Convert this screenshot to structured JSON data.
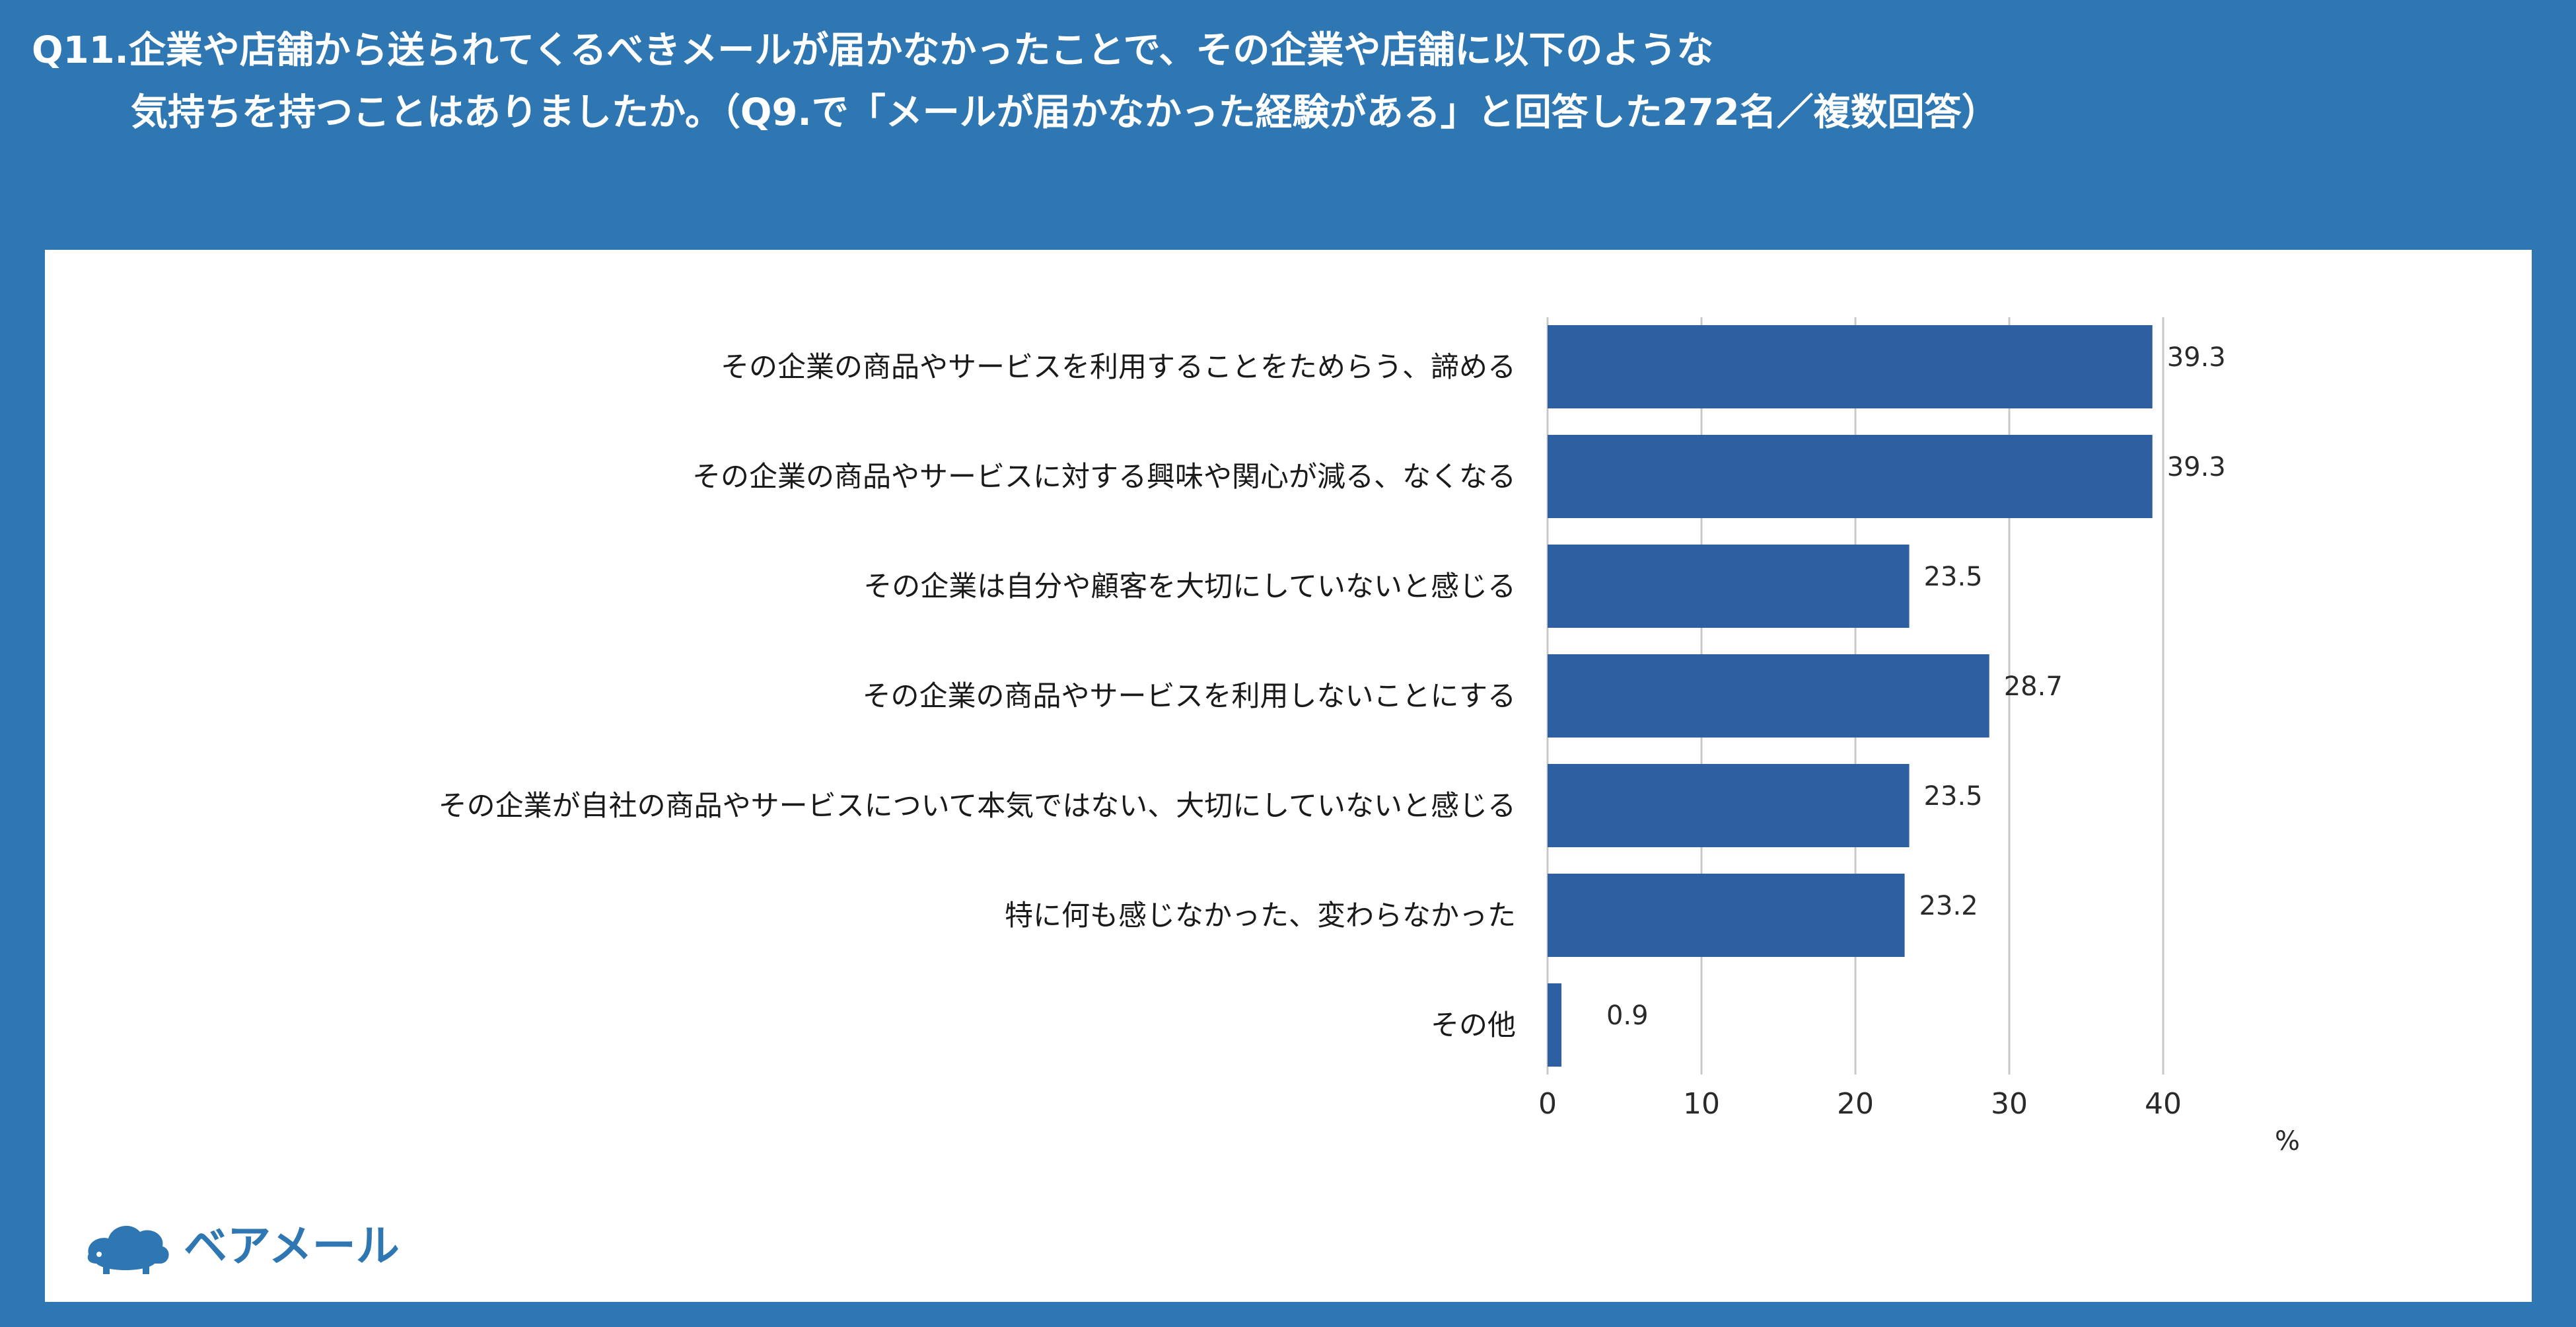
{
  "title": {
    "line1": "Q11.企業や店舗から送られてくるべきメールが届かなかったことで、その企業や店舗に以下のような",
    "line2": "気持ちを持つことはありましたか。（Q9.で「メールが届かなかった経験がある」と回答した272名／複数回答）"
  },
  "logo": {
    "text": "ベアメール",
    "icon": "bear-cloud-logo-icon"
  },
  "colors": {
    "background": "#2f77b3",
    "bar": "#2e5fa0",
    "panel": "#ffffff",
    "grid": "#c8c8c8"
  },
  "chart_data": {
    "type": "bar",
    "orientation": "horizontal",
    "categories": [
      "その企業の商品やサービスを利用することをためらう、諦める",
      "その企業の商品やサービスに対する興味や関心が減る、なくなる",
      "その企業は自分や顧客を大切にしていないと感じる",
      "その企業の商品やサービスを利用しないことにする",
      "その企業が自社の商品やサービスについて本気ではない、大切にしていないと感じる",
      "特に何も感じなかった、変わらなかった",
      "その他"
    ],
    "values": [
      39.3,
      39.3,
      23.5,
      28.7,
      23.5,
      23.2,
      0.9
    ],
    "value_labels": [
      "39.3",
      "39.3",
      "23.5",
      "28.7",
      "23.5",
      "23.2",
      "0.9"
    ],
    "xlim": [
      0,
      40
    ],
    "xticks": [
      "0",
      "10",
      "20",
      "30",
      "40"
    ],
    "xlabel": "%",
    "grid": true
  }
}
